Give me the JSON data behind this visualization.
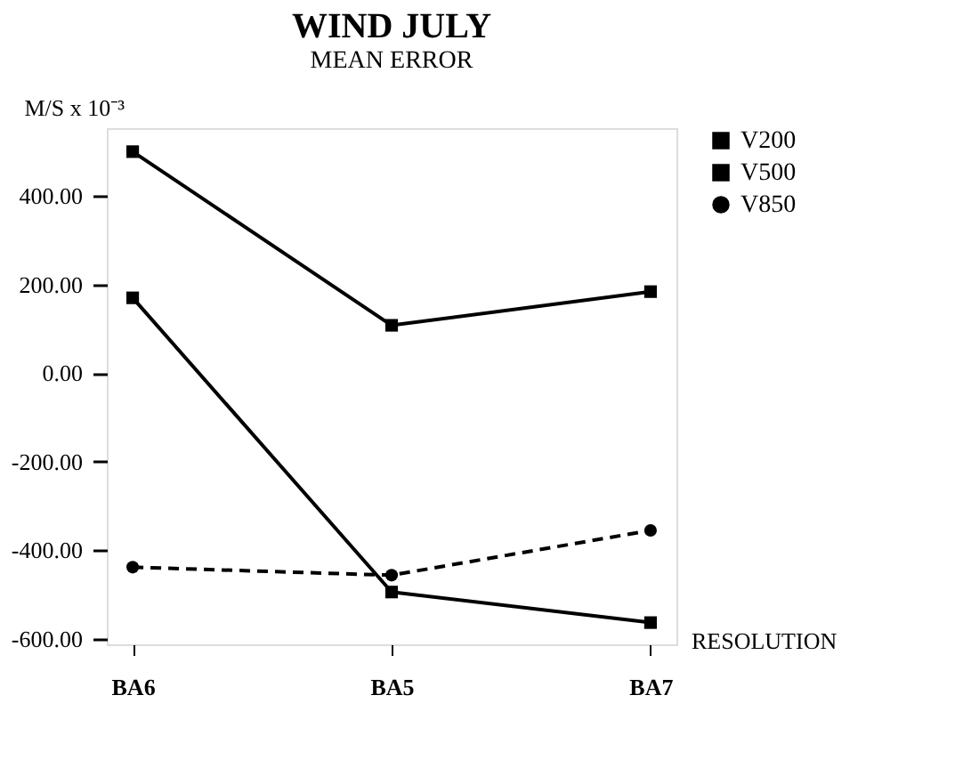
{
  "chart_data": {
    "type": "line",
    "title": "WIND JULY",
    "subtitle": "MEAN ERROR",
    "ylabel": "M/S x 10⁻³",
    "xlabel": "RESOLUTION",
    "categories": [
      "BA6",
      "BA5",
      "BA7"
    ],
    "series": [
      {
        "name": "V200",
        "color": "#000000",
        "values": [
          500,
          108,
          184
        ],
        "marker": "square",
        "line_style": "solid"
      },
      {
        "name": "V500",
        "color": "#000000",
        "values": [
          170,
          -494,
          -563
        ],
        "marker": "square",
        "line_style": "solid"
      },
      {
        "name": "V850",
        "color": "#000000",
        "values": [
          -438,
          -456,
          -355
        ],
        "marker": "circle",
        "line_style": "dashed"
      }
    ],
    "ylim": [
      -612,
      553
    ],
    "yticks": [
      {
        "value": -600,
        "label": "-600.00"
      },
      {
        "value": -400,
        "label": "-400.00"
      },
      {
        "value": -200,
        "label": "-200.00"
      },
      {
        "value": 0,
        "label": "0.00"
      },
      {
        "value": 200,
        "label": "200.00"
      },
      {
        "value": 400,
        "label": "400.00"
      }
    ],
    "grid": false,
    "legend": "top right"
  }
}
